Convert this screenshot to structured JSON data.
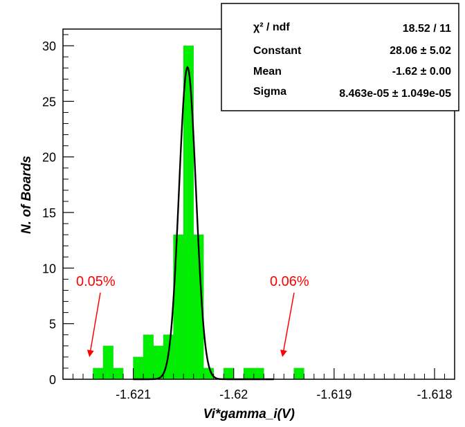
{
  "chart_data": {
    "type": "bar",
    "title": "",
    "xlabel": "Vi*gamma_i(V)",
    "ylabel": "N. of Boards",
    "xlim": [
      -1.6217,
      -1.6178
    ],
    "ylim": [
      0,
      31.5
    ],
    "x_ticks": [
      -1.621,
      -1.62,
      -1.619,
      -1.618
    ],
    "x_tick_labels": [
      "-1.621",
      "-1.62",
      "-1.619",
      "-1.618"
    ],
    "y_ticks": [
      0,
      5,
      10,
      15,
      20,
      25,
      30
    ],
    "y_tick_labels": [
      "0",
      "5",
      "10",
      "15",
      "20",
      "25",
      "30"
    ],
    "bin_width": 0.0001,
    "bins": [
      {
        "x_low": -1.6214,
        "count": 1
      },
      {
        "x_low": -1.6213,
        "count": 3
      },
      {
        "x_low": -1.6212,
        "count": 1
      },
      {
        "x_low": -1.6211,
        "count": 0
      },
      {
        "x_low": -1.621,
        "count": 2
      },
      {
        "x_low": -1.6209,
        "count": 4
      },
      {
        "x_low": -1.6208,
        "count": 3
      },
      {
        "x_low": -1.6207,
        "count": 4
      },
      {
        "x_low": -1.6206,
        "count": 13
      },
      {
        "x_low": -1.6205,
        "count": 30
      },
      {
        "x_low": -1.6204,
        "count": 13
      },
      {
        "x_low": -1.6203,
        "count": 1
      },
      {
        "x_low": -1.6202,
        "count": 0
      },
      {
        "x_low": -1.6201,
        "count": 1
      },
      {
        "x_low": -1.62,
        "count": 0
      },
      {
        "x_low": -1.6199,
        "count": 1
      },
      {
        "x_low": -1.6198,
        "count": 1
      },
      {
        "x_low": -1.6197,
        "count": 0
      },
      {
        "x_low": -1.6196,
        "count": 0
      },
      {
        "x_low": -1.6195,
        "count": 0
      },
      {
        "x_low": -1.6194,
        "count": 1
      }
    ],
    "fit": {
      "function": "gaus",
      "constant": 28.06,
      "mean": -1.62046,
      "sigma": 8.463e-05
    },
    "stats_box": {
      "rows": [
        {
          "label": "χ² / ndf",
          "value": "18.52 / 11"
        },
        {
          "label": "Constant",
          "value": "28.06 ± 5.02"
        },
        {
          "label": "Mean",
          "value": "-1.62 ± 0.00"
        },
        {
          "label": "Sigma",
          "value": "8.463e-05 ± 1.049e-05"
        }
      ]
    },
    "annotations": [
      {
        "text": "0.05%",
        "arrow_target_x": -1.62138,
        "arrow_target_y": 1
      },
      {
        "text": "0.06%",
        "arrow_target_x": -1.61932,
        "arrow_target_y": 1
      }
    ],
    "colors": {
      "bar_fill": "#00ee00",
      "bar_edge": "#33cc33",
      "fit_line": "#000000",
      "annotation": "#ff0000",
      "axes": "#000000",
      "background": "#ffffff"
    },
    "grid": false,
    "legend": "none"
  }
}
